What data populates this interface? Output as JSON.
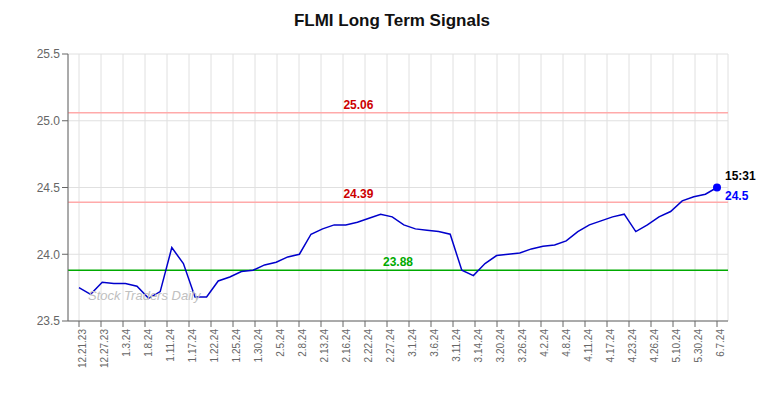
{
  "chart_data": {
    "type": "line",
    "title": "FLMI Long Term Signals",
    "x": [
      0,
      0.5272727273,
      1.0545454545,
      1.5818181818,
      2.1090909091,
      2.6363636364,
      3.1636363636,
      3.6909090909,
      4.2181818182,
      4.7454545455,
      5.2727272727,
      5.8,
      6.3272727273,
      6.8545454545,
      7.3818181818,
      7.9090909091,
      8.4363636364,
      8.9636363636,
      9.4909090909,
      10.0181818182,
      10.5454545455,
      11.0727272727,
      11.6,
      12.1272727273,
      12.6545454545,
      13.1818181818,
      13.7090909091,
      14.2363636364,
      14.7636363636,
      15.2909090909,
      15.8181818182,
      16.3454545455,
      16.8727272727,
      17.4,
      17.9272727273,
      18.4545454545,
      18.9818181818,
      19.5090909091,
      20.0363636364,
      20.5636363636,
      21.0909090909,
      21.6181818182,
      22.1454545455,
      22.6727272727,
      23.2,
      23.7272727273,
      24.2545454545,
      24.7818181818,
      25.3090909091,
      25.8363636364,
      26.3636363636,
      26.8909090909,
      27.4181818182,
      27.9454545455,
      28.4727272727,
      29
    ],
    "values": [
      23.75,
      23.7,
      23.79,
      23.78,
      23.78,
      23.76,
      23.67,
      23.72,
      24.05,
      23.93,
      23.68,
      23.68,
      23.8,
      23.83,
      23.87,
      23.88,
      23.92,
      23.94,
      23.98,
      24.0,
      24.15,
      24.19,
      24.22,
      24.22,
      24.24,
      24.27,
      24.3,
      24.28,
      24.22,
      24.19,
      24.18,
      24.17,
      24.15,
      23.88,
      23.84,
      23.93,
      23.99,
      24.0,
      24.01,
      24.04,
      24.06,
      24.07,
      24.1,
      24.17,
      24.22,
      24.25,
      24.28,
      24.3,
      24.17,
      24.22,
      24.28,
      24.32,
      24.4,
      24.43,
      24.45,
      24.5
    ],
    "color": "#0000cc",
    "xlim": [
      -0.5,
      29.5
    ],
    "xticks": [
      {
        "value": 0,
        "label": "12.21.23"
      },
      {
        "value": 1,
        "label": "12.27.23"
      },
      {
        "value": 2,
        "label": "1.3.24"
      },
      {
        "value": 3,
        "label": "1.8.24"
      },
      {
        "value": 4,
        "label": "1.11.24"
      },
      {
        "value": 5,
        "label": "1.17.24"
      },
      {
        "value": 6,
        "label": "1.22.24"
      },
      {
        "value": 7,
        "label": "1.25.24"
      },
      {
        "value": 8,
        "label": "1.30.24"
      },
      {
        "value": 9,
        "label": "2.5.24"
      },
      {
        "value": 10,
        "label": "2.8.24"
      },
      {
        "value": 11,
        "label": "2.13.24"
      },
      {
        "value": 12,
        "label": "2.16.24"
      },
      {
        "value": 13,
        "label": "2.22.24"
      },
      {
        "value": 14,
        "label": "2.27.24"
      },
      {
        "value": 15,
        "label": "3.1.24"
      },
      {
        "value": 16,
        "label": "3.6.24"
      },
      {
        "value": 17,
        "label": "3.11.24"
      },
      {
        "value": 18,
        "label": "3.14.24"
      },
      {
        "value": 19,
        "label": "3.20.24"
      },
      {
        "value": 20,
        "label": "3.26.24"
      },
      {
        "value": 21,
        "label": "4.2.24"
      },
      {
        "value": 22,
        "label": "4.8.24"
      },
      {
        "value": 23,
        "label": "4.11.24"
      },
      {
        "value": 24,
        "label": "4.17.24"
      },
      {
        "value": 25,
        "label": "4.23.24"
      },
      {
        "value": 26,
        "label": "4.26.24"
      },
      {
        "value": 27,
        "label": "5.10.24"
      },
      {
        "value": 28,
        "label": "5.30.24"
      },
      {
        "value": 29,
        "label": "6.7.24"
      }
    ],
    "ylim": [
      23.5,
      25.5
    ],
    "yticks": [
      23.5,
      {
        "value": 24.0,
        "label": "24.0"
      },
      24.5,
      {
        "value": 25.0,
        "label": "25.0"
      },
      25.5
    ],
    "grid": true,
    "hlines": [
      {
        "value": 25.06,
        "label": "25.06",
        "color": "#ffaaaa",
        "label_color": "#cc0000"
      },
      {
        "value": 24.39,
        "label": "24.39",
        "color": "#ffaaaa",
        "label_color": "#cc0000"
      },
      {
        "value": 23.88,
        "label": "23.88",
        "color": "#00aa00",
        "label_color": "#00aa00"
      }
    ],
    "last_point": {
      "color": "#0000ff",
      "time_label": "15:31",
      "time_color": "#000000",
      "value_label": "24.5"
    },
    "watermark": {
      "text": "Stock Traders Daily",
      "color": "#c0c0c0"
    }
  }
}
